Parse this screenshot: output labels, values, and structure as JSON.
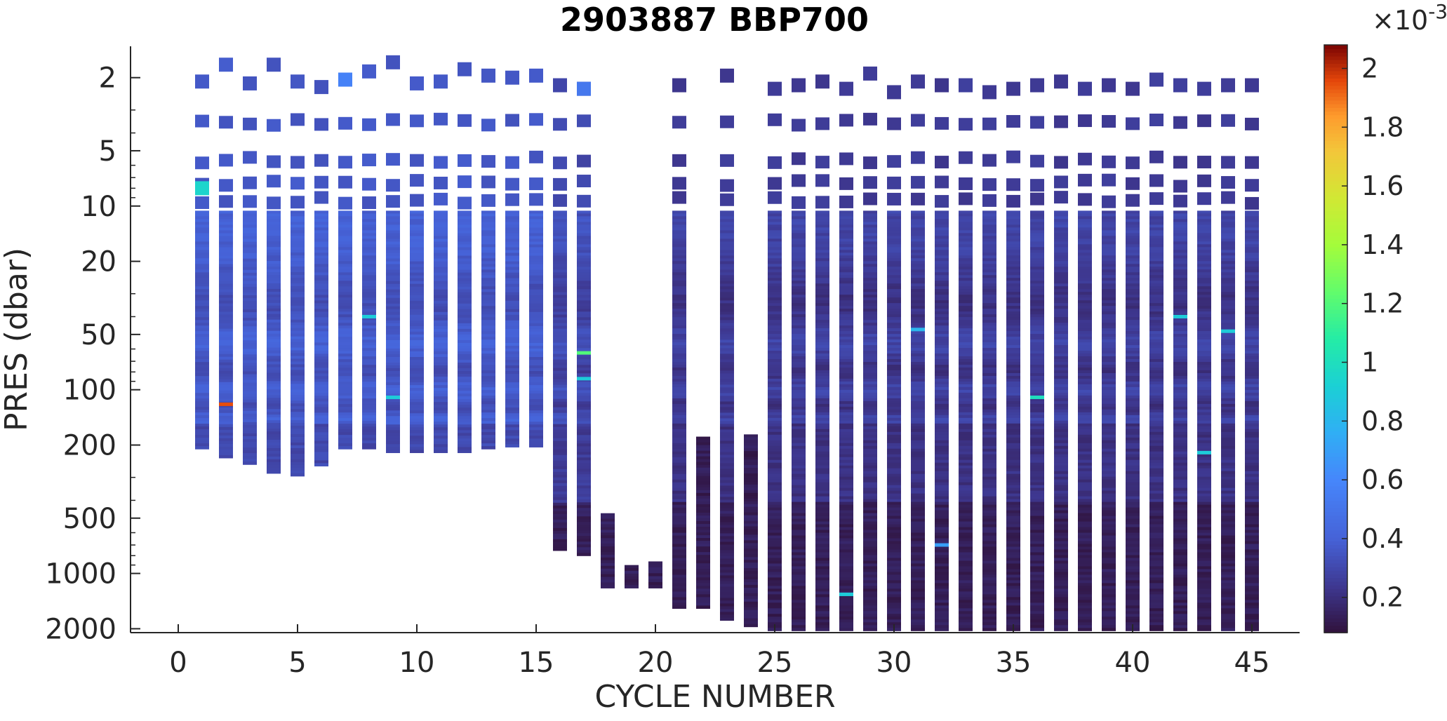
{
  "chart_data": {
    "type": "heatmap",
    "title": "2903887 BBP700",
    "xlabel": "CYCLE NUMBER",
    "ylabel": "PRES (dbar)",
    "xlim": [
      -2,
      47
    ],
    "ylim": [
      1.35,
      2100
    ],
    "y_scale": "log",
    "y_reversed": true,
    "x_ticks": [
      0,
      5,
      10,
      15,
      20,
      25,
      30,
      35,
      40,
      45
    ],
    "x_tick_labels": [
      "0",
      "5",
      "10",
      "15",
      "20",
      "25",
      "30",
      "35",
      "40",
      "45"
    ],
    "y_ticks": [
      2,
      5,
      10,
      20,
      50,
      100,
      200,
      500,
      1000,
      2000
    ],
    "y_tick_labels": [
      "2",
      "5",
      "10",
      "20",
      "50",
      "100",
      "200",
      "500",
      "1000",
      "2000"
    ],
    "grid": false,
    "colorbar": {
      "colormap": "turbo",
      "range": [
        8e-05,
        0.00208
      ],
      "exponent_label": "×10",
      "exponent_power": "-3",
      "ticks": [
        0.2,
        0.4,
        0.6,
        0.8,
        1.0,
        1.2,
        1.4,
        1.6,
        1.8,
        2.0
      ],
      "tick_labels": [
        "0.2",
        "0.4",
        "0.6",
        "0.8",
        "1",
        "1.2",
        "1.4",
        "1.6",
        "1.8",
        "2"
      ]
    },
    "profiles": [
      {
        "cycle": 1,
        "max_pres": 210,
        "surface_pres": 2.1,
        "value": 0.00036
      },
      {
        "cycle": 2,
        "max_pres": 235,
        "surface_pres": 1.7,
        "value": 0.00036
      },
      {
        "cycle": 3,
        "max_pres": 255,
        "surface_pres": 2.15,
        "value": 0.00036
      },
      {
        "cycle": 4,
        "max_pres": 285,
        "surface_pres": 1.7,
        "value": 0.00036
      },
      {
        "cycle": 5,
        "max_pres": 295,
        "surface_pres": 2.1,
        "value": 0.00036
      },
      {
        "cycle": 6,
        "max_pres": 260,
        "surface_pres": 2.25,
        "value": 0.00036
      },
      {
        "cycle": 7,
        "max_pres": 210,
        "surface_pres": 2.05,
        "value": 0.00036
      },
      {
        "cycle": 8,
        "max_pres": 210,
        "surface_pres": 1.85,
        "value": 0.00036
      },
      {
        "cycle": 9,
        "max_pres": 220,
        "surface_pres": 1.65,
        "value": 0.00036
      },
      {
        "cycle": 10,
        "max_pres": 220,
        "surface_pres": 2.15,
        "value": 0.00036
      },
      {
        "cycle": 11,
        "max_pres": 220,
        "surface_pres": 2.1,
        "value": 0.00036
      },
      {
        "cycle": 12,
        "max_pres": 220,
        "surface_pres": 1.8,
        "value": 0.00036
      },
      {
        "cycle": 13,
        "max_pres": 210,
        "surface_pres": 1.95,
        "value": 0.00036
      },
      {
        "cycle": 14,
        "max_pres": 205,
        "surface_pres": 2.0,
        "value": 0.00036
      },
      {
        "cycle": 15,
        "max_pres": 205,
        "surface_pres": 1.95,
        "value": 0.00036
      },
      {
        "cycle": 16,
        "max_pres": 750,
        "surface_pres": 2.2,
        "value": 0.0003
      },
      {
        "cycle": 17,
        "max_pres": 800,
        "surface_pres": 2.3,
        "value": 0.0003
      },
      {
        "cycle": 18,
        "max_pres": 1200,
        "min_pres": 470,
        "value": 0.00012
      },
      {
        "cycle": 19,
        "max_pres": 1200,
        "min_pres": 900,
        "value": 0.00012
      },
      {
        "cycle": 20,
        "max_pres": 1200,
        "min_pres": 860,
        "value": 0.00012
      },
      {
        "cycle": 21,
        "max_pres": 1550,
        "surface_pres": 2.2,
        "value": 0.00025
      },
      {
        "cycle": 22,
        "max_pres": 1550,
        "min_pres": 180,
        "value": 0.00015
      },
      {
        "cycle": 23,
        "max_pres": 1800,
        "surface_pres": 1.95,
        "value": 0.00025
      },
      {
        "cycle": 24,
        "max_pres": 1950,
        "min_pres": 175,
        "value": 0.00015
      },
      {
        "cycle": 25,
        "max_pres": 2050,
        "surface_pres": 2.3,
        "value": 0.00025
      },
      {
        "cycle": 26,
        "max_pres": 2050,
        "surface_pres": 2.2,
        "value": 0.00025
      },
      {
        "cycle": 27,
        "max_pres": 2050,
        "surface_pres": 2.1,
        "value": 0.00025
      },
      {
        "cycle": 28,
        "max_pres": 2050,
        "surface_pres": 2.3,
        "value": 0.00025
      },
      {
        "cycle": 29,
        "max_pres": 2050,
        "surface_pres": 1.9,
        "value": 0.00025
      },
      {
        "cycle": 30,
        "max_pres": 2050,
        "surface_pres": 2.4,
        "value": 0.00025
      },
      {
        "cycle": 31,
        "max_pres": 2050,
        "surface_pres": 2.1,
        "value": 0.00025
      },
      {
        "cycle": 32,
        "max_pres": 2050,
        "surface_pres": 2.2,
        "value": 0.00025
      },
      {
        "cycle": 33,
        "max_pres": 2050,
        "surface_pres": 2.2,
        "value": 0.00025
      },
      {
        "cycle": 34,
        "max_pres": 2050,
        "surface_pres": 2.4,
        "value": 0.00025
      },
      {
        "cycle": 35,
        "max_pres": 2050,
        "surface_pres": 2.3,
        "value": 0.00025
      },
      {
        "cycle": 36,
        "max_pres": 2050,
        "surface_pres": 2.2,
        "value": 0.00025
      },
      {
        "cycle": 37,
        "max_pres": 2050,
        "surface_pres": 2.1,
        "value": 0.00025
      },
      {
        "cycle": 38,
        "max_pres": 2050,
        "surface_pres": 2.3,
        "value": 0.00025
      },
      {
        "cycle": 39,
        "max_pres": 2050,
        "surface_pres": 2.2,
        "value": 0.00025
      },
      {
        "cycle": 40,
        "max_pres": 2050,
        "surface_pres": 2.3,
        "value": 0.00025
      },
      {
        "cycle": 41,
        "max_pres": 2050,
        "surface_pres": 2.05,
        "value": 0.00025
      },
      {
        "cycle": 42,
        "max_pres": 2050,
        "surface_pres": 2.2,
        "value": 0.00025
      },
      {
        "cycle": 43,
        "max_pres": 2050,
        "surface_pres": 2.3,
        "value": 0.00025
      },
      {
        "cycle": 44,
        "max_pres": 2050,
        "surface_pres": 2.2,
        "value": 0.00025
      },
      {
        "cycle": 45,
        "max_pres": 2050,
        "surface_pres": 2.2,
        "value": 0.00025
      }
    ],
    "anomalies": [
      {
        "cycle": 1,
        "pres": 8,
        "value": 0.00095
      },
      {
        "cycle": 2,
        "pres": 120,
        "value": 0.00195
      },
      {
        "cycle": 7,
        "pres": 2.05,
        "value": 0.00058
      },
      {
        "cycle": 17,
        "pres": 2.3,
        "value": 0.00052
      },
      {
        "cycle": 17,
        "pres": 63,
        "value": 0.0012
      },
      {
        "cycle": 17,
        "pres": 87,
        "value": 0.0009
      },
      {
        "cycle": 8,
        "pres": 40,
        "value": 0.0009
      },
      {
        "cycle": 9,
        "pres": 110,
        "value": 0.0009
      },
      {
        "cycle": 28,
        "pres": 1300,
        "value": 0.0009
      },
      {
        "cycle": 36,
        "pres": 110,
        "value": 0.001
      },
      {
        "cycle": 42,
        "pres": 40,
        "value": 0.0009
      },
      {
        "cycle": 43,
        "pres": 220,
        "value": 0.0009
      },
      {
        "cycle": 44,
        "pres": 48,
        "value": 0.0009
      },
      {
        "cycle": 32,
        "pres": 700,
        "value": 0.0007
      },
      {
        "cycle": 31,
        "pres": 47,
        "value": 0.0008
      }
    ]
  }
}
